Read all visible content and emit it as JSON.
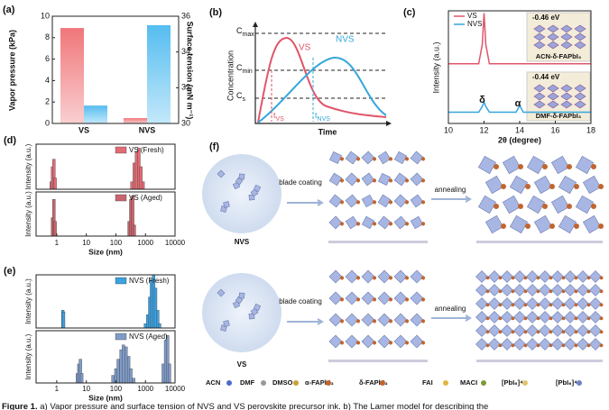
{
  "chart_data": [
    {
      "panel": "(a)",
      "type": "bar",
      "categories": [
        "VS",
        "NVS"
      ],
      "ylabel": "Vapor pressure (kPa)",
      "y2label": "Surface tension (mN m⁻¹)",
      "series": [
        {
          "color": "#f0767a",
          "values": [
            8.9,
            0.5
          ]
        },
        {
          "color": "#55bdf0",
          "values": [
            31.0,
            35.5
          ],
          "axis": "y2"
        }
      ],
      "ylim": [
        0,
        10
      ],
      "yticks": [
        0,
        2,
        4,
        6,
        8,
        10
      ],
      "y2lim": [
        30,
        36
      ],
      "y2ticks": [
        30,
        32,
        34,
        36
      ]
    },
    {
      "panel": "(c)",
      "type": "line",
      "xlabel": "2θ (degree)",
      "ylabel": "Intensity (a.u.)",
      "xlim": [
        10,
        18
      ],
      "xticks": [
        10,
        12,
        14,
        16,
        18
      ],
      "ylim": [
        0,
        10
      ],
      "x": [
        10,
        11.7,
        11.9,
        12,
        12.1,
        12.3,
        13.8,
        14,
        14.2,
        18
      ],
      "series": [
        {
          "name": "VS",
          "color": "#e0566a",
          "values": [
            5.3,
            5.3,
            7.0,
            9.8,
            7.0,
            5.3,
            5.3,
            5.3,
            5.3,
            5.3
          ]
        },
        {
          "name": "NVS",
          "color": "#35a6dc",
          "values": [
            1.0,
            1.0,
            1.5,
            1.9,
            1.5,
            1.0,
            1.0,
            1.6,
            1.0,
            1.0
          ]
        }
      ],
      "annotations": [
        "δ",
        "α"
      ],
      "insets": [
        {
          "energy": "-0.46 eV",
          "label": "ACN-δ-FAPbI₃"
        },
        {
          "energy": "-0.44 eV",
          "label": "DMF-δ-FAPbI₃"
        }
      ]
    },
    {
      "panel": "(d)",
      "type": "bar",
      "xscale": "log",
      "xlim": [
        0.2,
        10000
      ],
      "ylim": [
        0,
        60
      ],
      "ylabel": "Intensity (a.u.)",
      "x": [
        0.65,
        0.72,
        0.8,
        0.88,
        350,
        420,
        500,
        600,
        700,
        830
      ],
      "series": [
        {
          "name": "VS (Fresh)",
          "color": "#e36b74",
          "values": [
            10,
            30,
            40,
            15,
            10,
            35,
            50,
            55,
            30,
            10
          ]
        }
      ]
    },
    {
      "type": "bar",
      "xscale": "log",
      "xlim": [
        0.2,
        10000
      ],
      "ylim": [
        0,
        60
      ],
      "ylabel": "Intensity (a.u.)",
      "xlabel": "Size (nm)",
      "xticks": [
        1,
        10,
        100,
        1000,
        10000
      ],
      "x": [
        0.72,
        0.8,
        0.88,
        280,
        320,
        370,
        420
      ],
      "series": [
        {
          "name": "VS (Aged)",
          "color": "#c9646c",
          "values": [
            25,
            50,
            20,
            20,
            50,
            55,
            15
          ]
        }
      ]
    },
    {
      "panel": "(e)",
      "type": "bar",
      "xscale": "log",
      "xlim": [
        0.2,
        10000
      ],
      "ylim": [
        0,
        60
      ],
      "ylabel": "Intensity (a.u.)",
      "x": [
        1.6,
        1.7,
        1000,
        1200,
        1400,
        1600,
        1900,
        2200,
        2600,
        3000
      ],
      "series": [
        {
          "name": "NVS (Fresh)",
          "color": "#3aa2e2",
          "values": [
            20,
            18,
            5,
            15,
            35,
            55,
            60,
            45,
            20,
            5
          ]
        }
      ]
    },
    {
      "type": "bar",
      "xscale": "log",
      "xlim": [
        0.2,
        10000
      ],
      "ylim": [
        0,
        55
      ],
      "ylabel": "Intensity (a.u.)",
      "xlabel": "Size (nm)",
      "xticks": [
        1,
        10,
        100,
        1000,
        10000
      ],
      "x": [
        5,
        5.6,
        6.3,
        7,
        80,
        100,
        120,
        150,
        180,
        220,
        270,
        320,
        400,
        4000,
        4800,
        5600,
        6500
      ],
      "series": [
        {
          "name": "NVS (Aged)",
          "color": "#7f9bc8",
          "values": [
            10,
            20,
            25,
            10,
            8,
            15,
            25,
            35,
            40,
            38,
            28,
            15,
            5,
            20,
            45,
            50,
            20
          ]
        }
      ]
    }
  ],
  "schematic": {
    "panel": "(b)",
    "ylabel": "Concentration",
    "xlabel": "Time",
    "levels": [
      {
        "base": "C",
        "sub": "max"
      },
      {
        "base": "C",
        "sub": "min"
      },
      {
        "base": "C",
        "sub": "s"
      }
    ],
    "curves": [
      {
        "name": "VS",
        "color": "#e0566a"
      },
      {
        "name": "NVS",
        "color": "#35a6dc"
      }
    ],
    "times": [
      {
        "base": "t",
        "sub": "VS"
      },
      {
        "base": "t",
        "sub": "NVS"
      }
    ]
  },
  "diagram": {
    "panel": "(f)",
    "rows": [
      {
        "ink": "NVS",
        "step1": "blade coating",
        "step2": "annealing"
      },
      {
        "ink": "VS",
        "step1": "blade coating",
        "step2": "annealing"
      }
    ],
    "legend": [
      "ACN",
      "DMF",
      "DMSO",
      "α-FAPbI₃",
      "δ-FAPbI₃",
      "FAI",
      "MACI",
      "[PbI₆]⁴⁻",
      "[PbI₆]⁴⁻"
    ]
  },
  "caption": {
    "label": "Figure 1.",
    "text": " a) Vapor pressure and surface tension of NVS and VS perovskite precursor ink. b) The Lamer model for describing the"
  }
}
